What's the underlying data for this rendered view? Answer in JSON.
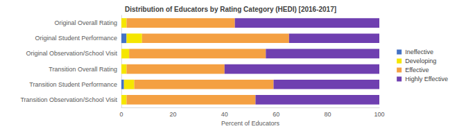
{
  "chart_data": {
    "type": "bar",
    "title": "Distribution of Educators by Rating Category (HEDI) [2016-2017]",
    "orientation": "horizontal",
    "stacked": true,
    "legend": "right",
    "grid": false,
    "x_label": "Percent of Educators",
    "categories": [
      "Original Overall Rating",
      "Original Student Performance",
      "Original Observation/School Visit",
      "Transition Overall Rating",
      "Transition Student Performance",
      "Transition Observation/School Visit"
    ],
    "series": [
      {
        "name": "Ineffective",
        "color": "#4472c4",
        "values": [
          0,
          2,
          0,
          0,
          1,
          0
        ]
      },
      {
        "name": "Developing",
        "color": "#f5e600",
        "values": [
          2,
          6,
          3,
          2,
          4,
          2
        ]
      },
      {
        "name": "Effective",
        "color": "#f4a042",
        "values": [
          42,
          57,
          53,
          38,
          54,
          50
        ]
      },
      {
        "name": "Highly Effective",
        "color": "#6f3fb0",
        "values": [
          56,
          35,
          44,
          60,
          41,
          48
        ]
      }
    ],
    "xlim": [
      0,
      100
    ],
    "xticks": [
      0,
      20,
      40,
      60,
      80,
      100
    ]
  }
}
